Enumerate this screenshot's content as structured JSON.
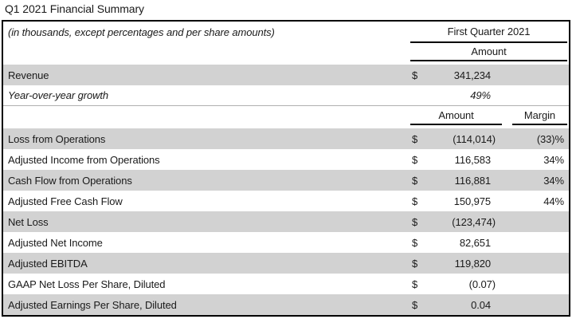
{
  "page_title": "Q1 2021 Financial Summary",
  "table": {
    "caption": "(in thousands, except percentages and per share amounts)",
    "column_group_header": "First Quarter 2021",
    "colors": {
      "shaded_row": "#d2d2d2",
      "table_border": "#000000",
      "section_divider": "#b0b0b0",
      "text": "#1a1a1a"
    },
    "revenue_section": {
      "amount_header": "Amount",
      "rows": [
        {
          "label": "Revenue",
          "dollar": "$",
          "amount": "341,234"
        },
        {
          "label": "Year-over-year growth",
          "dollar": "",
          "amount": "49%"
        }
      ]
    },
    "metrics_section": {
      "amount_header": "Amount",
      "margin_header": "Margin",
      "rows": [
        {
          "label": "Loss from Operations",
          "dollar": "$",
          "amount": "(114,014)",
          "margin": "(33)%"
        },
        {
          "label": "Adjusted Income from Operations",
          "dollar": "$",
          "amount": "116,583",
          "margin": "34%"
        },
        {
          "label": "Cash Flow from Operations",
          "dollar": "$",
          "amount": "116,881",
          "margin": "34%"
        },
        {
          "label": "Adjusted Free Cash Flow",
          "dollar": "$",
          "amount": "150,975",
          "margin": "44%"
        },
        {
          "label": "Net Loss",
          "dollar": "$",
          "amount": "(123,474)",
          "margin": ""
        },
        {
          "label": "Adjusted Net Income",
          "dollar": "$",
          "amount": "82,651",
          "margin": ""
        },
        {
          "label": "Adjusted EBITDA",
          "dollar": "$",
          "amount": "119,820",
          "margin": ""
        },
        {
          "label": "GAAP Net Loss Per Share, Diluted",
          "dollar": "$",
          "amount": "(0.07)",
          "margin": ""
        },
        {
          "label": "Adjusted Earnings Per Share, Diluted",
          "dollar": "$",
          "amount": "0.04",
          "margin": ""
        }
      ]
    }
  }
}
